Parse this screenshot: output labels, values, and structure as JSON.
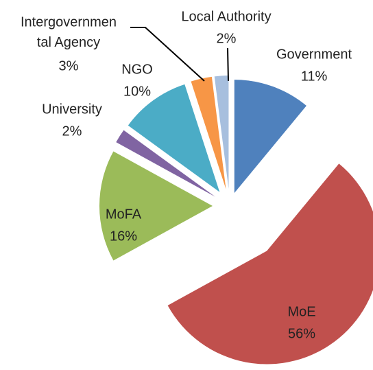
{
  "chart_data": {
    "type": "pie",
    "categories": [
      "Government",
      "MoE",
      "MoFA",
      "University",
      "NGO",
      "Intergovernmental Agency",
      "Local Authority"
    ],
    "values": [
      11,
      56,
      16,
      2,
      10,
      3,
      2
    ],
    "value_labels": [
      "11%",
      "56%",
      "16%",
      "2%",
      "10%",
      "3%",
      "2%"
    ],
    "colors": [
      "#4f81bd",
      "#c0504d",
      "#9bbb59",
      "#8064a2",
      "#4bacc6",
      "#f79646",
      "#a7bfde"
    ]
  }
}
